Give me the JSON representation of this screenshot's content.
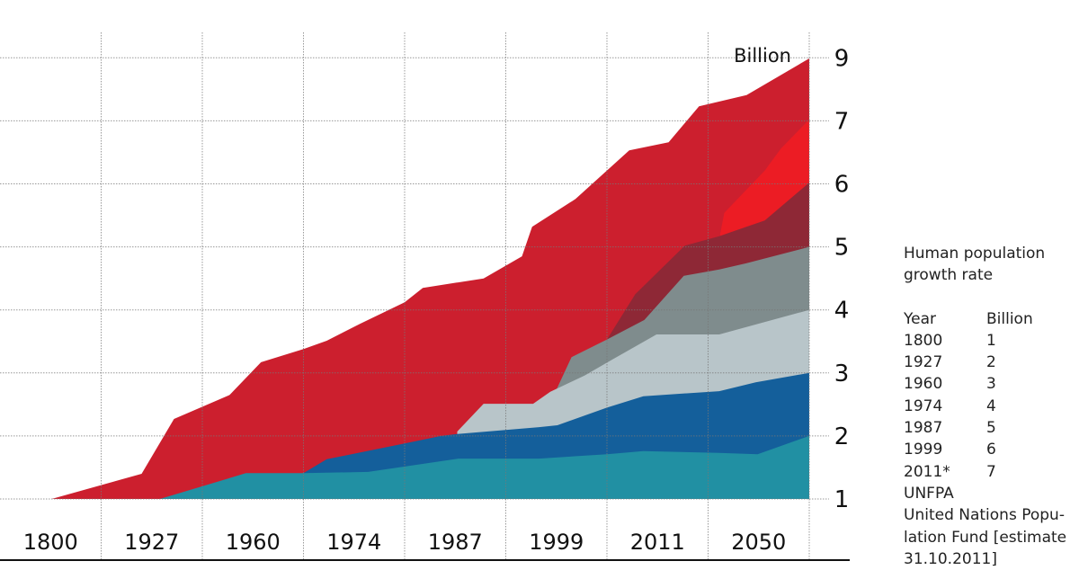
{
  "chart_data": {
    "type": "area",
    "title": "Human population growth rate",
    "unit_label": "Billion",
    "x_categories": [
      "1800",
      "1927",
      "1960",
      "1974",
      "1987",
      "1999",
      "2011",
      "2050"
    ],
    "y_ticks": [
      "1",
      "2",
      "3",
      "4",
      "5",
      "6",
      "7",
      "9"
    ],
    "y_axis_side": "right",
    "grid": true,
    "note": "x in category-position units (0-8, gridlines at integers, labels centered between); y in tick-level units (0 = '1' billion tick ... 7 = '9' billion tick)",
    "series": [
      {
        "name": "red-main",
        "color": "#cc1f2e",
        "points": [
          [
            0.51,
            0
          ],
          [
            1.4,
            0.4
          ],
          [
            1.72,
            1.27
          ],
          [
            2.27,
            1.65
          ],
          [
            2.58,
            2.17
          ],
          [
            3.0,
            2.38
          ],
          [
            3.23,
            2.51
          ],
          [
            3.56,
            2.78
          ],
          [
            4.0,
            3.12
          ],
          [
            4.18,
            3.35
          ],
          [
            4.78,
            3.5
          ],
          [
            5.16,
            3.85
          ],
          [
            5.26,
            4.32
          ],
          [
            5.69,
            4.76
          ],
          [
            6.22,
            5.53
          ],
          [
            6.61,
            5.66
          ],
          [
            6.91,
            6.23
          ],
          [
            7.38,
            6.41
          ],
          [
            8.0,
            6.99
          ]
        ]
      },
      {
        "name": "bright-red",
        "color": "#ec1c24",
        "points": [
          [
            7.12,
            4.21
          ],
          [
            7.16,
            4.54
          ],
          [
            7.56,
            5.21
          ],
          [
            7.72,
            5.56
          ],
          [
            7.98,
            5.99
          ],
          [
            8.0,
            6.0
          ]
        ]
      },
      {
        "name": "maroon",
        "color": "#8e2836",
        "points": [
          [
            6.0,
            2.53
          ],
          [
            6.28,
            3.25
          ],
          [
            6.77,
            4.02
          ],
          [
            7.11,
            4.17
          ],
          [
            7.56,
            4.42
          ],
          [
            8.0,
            5.02
          ]
        ]
      },
      {
        "name": "dark-gray",
        "color": "#7f8c8d",
        "points": [
          [
            5.47,
            1.63
          ],
          [
            5.65,
            2.25
          ],
          [
            6.0,
            2.53
          ],
          [
            6.37,
            2.84
          ],
          [
            6.76,
            3.54
          ],
          [
            7.11,
            3.64
          ],
          [
            7.38,
            3.74
          ],
          [
            8.0,
            4.0
          ]
        ]
      },
      {
        "name": "light-gray",
        "color": "#b8c5c9",
        "points": [
          [
            4.52,
            1.07
          ],
          [
            4.78,
            1.51
          ],
          [
            5.27,
            1.51
          ],
          [
            5.44,
            1.7
          ],
          [
            5.78,
            1.96
          ],
          [
            6.04,
            2.2
          ],
          [
            6.49,
            2.61
          ],
          [
            7.11,
            2.61
          ],
          [
            8.0,
            3.0
          ]
        ]
      },
      {
        "name": "blue",
        "color": "#145f9b",
        "points": [
          [
            3.0,
            0.41
          ],
          [
            3.23,
            0.63
          ],
          [
            4.0,
            0.88
          ],
          [
            4.36,
            1.0
          ],
          [
            4.52,
            1.03
          ],
          [
            5.33,
            1.14
          ],
          [
            5.51,
            1.17
          ],
          [
            6.0,
            1.45
          ],
          [
            6.36,
            1.63
          ],
          [
            7.11,
            1.71
          ],
          [
            7.47,
            1.85
          ],
          [
            8.0,
            2.0
          ]
        ]
      },
      {
        "name": "teal",
        "color": "#2190a3",
        "points": [
          [
            1.58,
            0
          ],
          [
            2.43,
            0.41
          ],
          [
            3.0,
            0.41
          ],
          [
            3.64,
            0.43
          ],
          [
            4.53,
            0.64
          ],
          [
            5.33,
            0.64
          ],
          [
            6.0,
            0.71
          ],
          [
            6.36,
            0.76
          ],
          [
            7.11,
            0.73
          ],
          [
            7.49,
            0.71
          ],
          [
            8.0,
            1.0
          ]
        ]
      }
    ]
  },
  "side_panel": {
    "title": "Human population growth rate",
    "header": {
      "year": "Year",
      "billion": "Billion"
    },
    "rows": [
      {
        "year": "1800",
        "billion": "1"
      },
      {
        "year": "1927",
        "billion": "2"
      },
      {
        "year": "1960",
        "billion": "3"
      },
      {
        "year": "1974",
        "billion": "4"
      },
      {
        "year": "1987",
        "billion": "5"
      },
      {
        "year": "1999",
        "billion": "6"
      },
      {
        "year": "2011*",
        "billion": "7"
      }
    ],
    "source": "UNFPA\nUnited Nations Popu-\nlation Fund [estimate\n31.10.2011]"
  }
}
